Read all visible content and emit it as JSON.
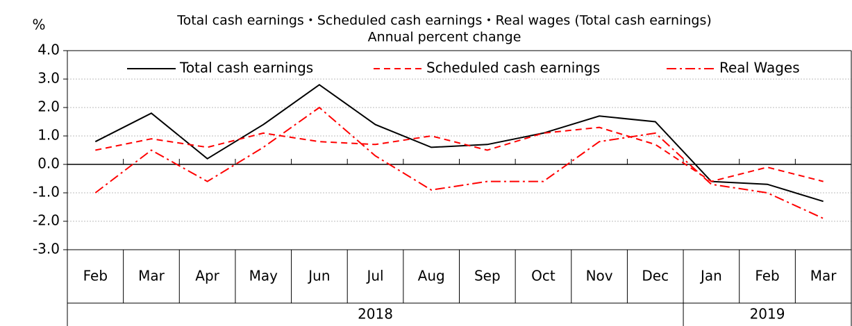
{
  "chart_data": {
    "type": "line",
    "title": "Total cash earnings・Scheduled cash earnings・Real wages (Total cash earnings)",
    "subtitle": "Annual percent change",
    "y_axis_label": "%",
    "categories": [
      "Feb",
      "Mar",
      "Apr",
      "May",
      "Jun",
      "Jul",
      "Aug",
      "Sep",
      "Oct",
      "Nov",
      "Dec",
      "Jan",
      "Feb",
      "Mar"
    ],
    "category_groups": [
      "2018",
      "2018",
      "2018",
      "2018",
      "2018",
      "2018",
      "2018",
      "2018",
      "2018",
      "2018",
      "2018",
      "2019",
      "2019",
      "2019"
    ],
    "series": [
      {
        "name": "Total cash earnings",
        "color": "#000000",
        "style": "solid",
        "values": [
          0.8,
          1.8,
          0.2,
          1.4,
          2.8,
          1.4,
          0.6,
          0.7,
          1.1,
          1.7,
          1.5,
          -0.6,
          -0.7,
          -1.3
        ]
      },
      {
        "name": "Scheduled cash earnings",
        "color": "#ff0000",
        "style": "dashed",
        "values": [
          0.5,
          0.9,
          0.6,
          1.1,
          0.8,
          0.7,
          1.0,
          0.5,
          1.1,
          1.3,
          0.7,
          -0.6,
          -0.1,
          -0.6
        ]
      },
      {
        "name": "Real Wages",
        "color": "#ff0000",
        "style": "dashdot",
        "values": [
          -1.0,
          0.5,
          -0.6,
          0.6,
          2.0,
          0.3,
          -0.9,
          -0.6,
          -0.6,
          0.8,
          1.1,
          -0.7,
          -1.0,
          -1.9
        ]
      }
    ],
    "ylim": [
      -3,
      4
    ],
    "yticks": [
      {
        "value": 4,
        "label": "4.0"
      },
      {
        "value": 3,
        "label": "3.0"
      },
      {
        "value": 2,
        "label": "2.0"
      },
      {
        "value": 1,
        "label": "1.0"
      },
      {
        "value": 0,
        "label": "0.0"
      },
      {
        "value": -1,
        "label": "-1.0"
      },
      {
        "value": -2,
        "label": "-2.0"
      },
      {
        "value": -3,
        "label": "-3.0"
      }
    ],
    "grid": true,
    "legend": "top"
  }
}
